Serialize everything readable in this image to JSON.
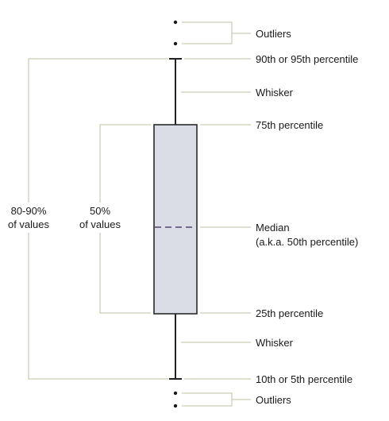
{
  "labels": {
    "outliers_top": "Outliers",
    "upper_whisker_end": "90th or 95th percentile",
    "whisker_top": "Whisker",
    "q3": "75th percentile",
    "median_line1": "Median",
    "median_line2": "(a.k.a. 50th percentile)",
    "q1": "25th percentile",
    "whisker_bottom": "Whisker",
    "lower_whisker_end": "10th or 5th percentile",
    "outliers_bottom": "Outliers"
  },
  "ranges": {
    "outer_line1": "80-90%",
    "outer_line2": "of values",
    "inner_line1": "50%",
    "inner_line2": "of values"
  },
  "colors": {
    "box_fill": "#dadde6",
    "box_stroke": "#2a2a2a",
    "median_dash": "#55456e",
    "leader_line": "#c9cfb4",
    "text": "#1a1a1a"
  }
}
